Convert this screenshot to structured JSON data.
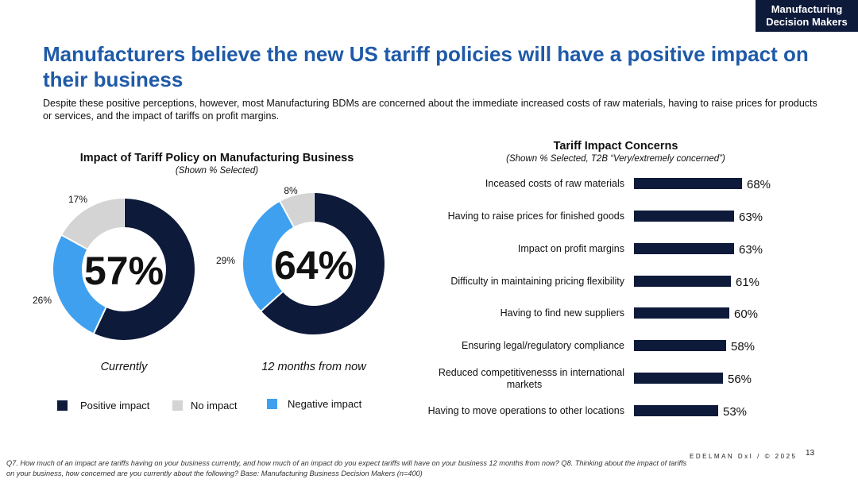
{
  "header": {
    "tag_line1": "Manufacturing",
    "tag_line2": "Decision Makers",
    "title": "Manufacturers believe the new US tariff policies will have a positive impact on their business",
    "subtitle": "Despite these positive perceptions, however, most Manufacturing BDMs are concerned about the immediate increased costs of raw materials, having to raise prices for products or services, and the impact of tariffs on profit margins."
  },
  "colors": {
    "positive": "#0d1a3a",
    "none": "#d4d4d4",
    "negative": "#3fa0f0",
    "bar": "#0d1a3a",
    "title": "#1f5aa8"
  },
  "chart_data": [
    {
      "type": "pie",
      "title": "Impact of Tariff Policy on Manufacturing Business",
      "subtitle": "(Shown % Selected)",
      "legend": [
        "Positive impact",
        "No impact",
        "Negative impact"
      ],
      "donuts": [
        {
          "caption": "Currently",
          "center_label": "57%",
          "slices": [
            {
              "name": "Positive impact",
              "value": 57,
              "label": "57%"
            },
            {
              "name": "Negative impact",
              "value": 26,
              "label": "26%"
            },
            {
              "name": "No impact",
              "value": 17,
              "label": "17%"
            }
          ]
        },
        {
          "caption": "12 months from now",
          "center_label": "64%",
          "slices": [
            {
              "name": "Positive impact",
              "value": 64,
              "label": "64%"
            },
            {
              "name": "Negative impact",
              "value": 29,
              "label": "29%"
            },
            {
              "name": "No impact",
              "value": 8,
              "label": "8%"
            }
          ]
        }
      ]
    },
    {
      "type": "bar",
      "orientation": "horizontal",
      "title": "Tariff Impact Concerns",
      "subtitle": "(Shown % Selected, T2B “Very/extremely concerned”)",
      "categories": [
        "Inceased costs of raw materials",
        "Having to raise prices for finished goods",
        "Impact on profit margins",
        "Difficulty in maintaining pricing flexibility",
        "Having to find new suppliers",
        "Ensuring legal/regulatory compliance",
        "Reduced competitivenesss in international markets",
        "Having to move operations to other locations"
      ],
      "values": [
        68,
        63,
        63,
        61,
        60,
        58,
        56,
        53
      ],
      "value_labels": [
        "68%",
        "63%",
        "63%",
        "61%",
        "60%",
        "58%",
        "56%",
        "53%"
      ],
      "xlim": [
        0,
        100
      ]
    }
  ],
  "footer": {
    "brand": "EDELMAN DxI / © 2025",
    "page_number": "13",
    "footnote": "Q7. How much of an impact are tariffs having on your business currently, and how much of an impact do you expect tariffs will have on your business 12 months from now? Q8. Thinking about the impact of tariffs on your business, how concerned are you currently about the following? Base: Manufacturing Business Decision Makers  (n=400)"
  }
}
